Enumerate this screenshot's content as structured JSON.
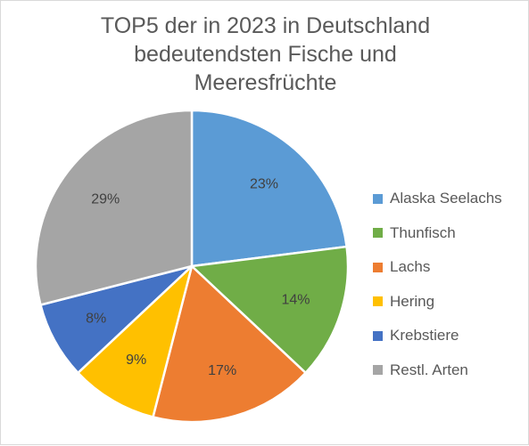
{
  "chart_data": {
    "type": "pie",
    "title_lines": [
      "TOP5 der in 2023 in Deutschland",
      "bedeutendsten Fische und",
      "Meeresfrüchte"
    ],
    "categories": [
      "Alaska Seelachs",
      "Thunfisch",
      "Lachs",
      "Hering",
      "Krebstiere",
      "Restl. Arten"
    ],
    "values": [
      23,
      14,
      17,
      9,
      8,
      29
    ],
    "data_labels": [
      "23%",
      "14%",
      "17%",
      "9%",
      "8%",
      "29%"
    ],
    "colors": [
      "#5B9BD5",
      "#70AD47",
      "#ED7D31",
      "#FFC000",
      "#4472C4",
      "#A5A5A5"
    ],
    "legend_position": "right",
    "start_angle": "12 o'clock",
    "direction": "clockwise"
  }
}
